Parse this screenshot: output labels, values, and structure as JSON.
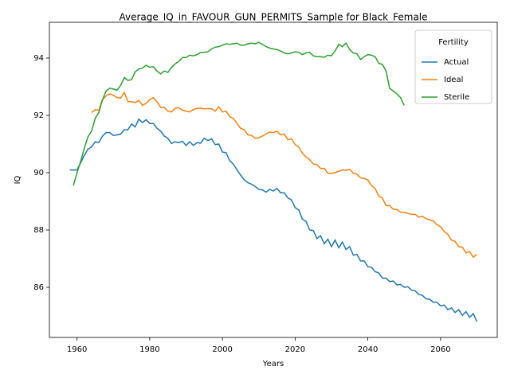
{
  "chart_data": {
    "type": "line",
    "title": "Average_IQ_in_FAVOUR_GUN_PERMITS_Sample for Black_Female",
    "xlabel": "Years",
    "ylabel": "IQ",
    "legend_title": "Fertility",
    "legend": "upper right",
    "grid": false,
    "xlim": [
      1952.4,
      2075.6
    ],
    "ylim": [
      84.25,
      95.25
    ],
    "xticks": [
      1960,
      1980,
      2000,
      2020,
      2040,
      2060
    ],
    "yticks": [
      86,
      88,
      90,
      92,
      94
    ],
    "x": [
      1958,
      1959,
      1960,
      1961,
      1962,
      1963,
      1964,
      1965,
      1966,
      1967,
      1968,
      1969,
      1970,
      1971,
      1972,
      1973,
      1974,
      1975,
      1976,
      1977,
      1978,
      1979,
      1980,
      1981,
      1982,
      1983,
      1984,
      1985,
      1986,
      1987,
      1988,
      1989,
      1990,
      1991,
      1992,
      1993,
      1994,
      1995,
      1996,
      1997,
      1998,
      1999,
      2000,
      2001,
      2002,
      2003,
      2004,
      2005,
      2006,
      2007,
      2008,
      2009,
      2010,
      2011,
      2012,
      2013,
      2014,
      2015,
      2016,
      2017,
      2018,
      2019,
      2020,
      2021,
      2022,
      2023,
      2024,
      2025,
      2026,
      2027,
      2028,
      2029,
      2030,
      2031,
      2032,
      2033,
      2034,
      2035,
      2036,
      2037,
      2038,
      2039,
      2040,
      2041,
      2042,
      2043,
      2044,
      2045,
      2046,
      2047,
      2048,
      2049,
      2050,
      2051,
      2052,
      2053,
      2054,
      2055,
      2056,
      2057,
      2058,
      2059,
      2060,
      2061,
      2062,
      2063,
      2064,
      2065,
      2066,
      2067,
      2068,
      2069,
      2070
    ],
    "series": [
      {
        "name": "Actual",
        "color": "#1f77b4",
        "values": [
          90.1,
          90.09,
          90.1,
          90.35,
          90.6,
          90.82,
          90.9,
          91.08,
          91.05,
          91.28,
          91.4,
          91.4,
          91.3,
          91.32,
          91.35,
          91.5,
          91.5,
          91.7,
          91.6,
          91.87,
          91.75,
          91.85,
          91.72,
          91.72,
          91.55,
          91.45,
          91.28,
          91.2,
          91.02,
          91.08,
          91.05,
          91.1,
          90.95,
          91.08,
          90.95,
          91.05,
          91.03,
          91.2,
          91.12,
          91.18,
          90.98,
          91.0,
          90.72,
          90.7,
          90.42,
          90.3,
          90.1,
          89.92,
          89.75,
          89.65,
          89.6,
          89.52,
          89.42,
          89.4,
          89.32,
          89.42,
          89.36,
          89.45,
          89.3,
          89.3,
          89.12,
          89.05,
          88.78,
          88.7,
          88.38,
          88.3,
          88.0,
          87.98,
          87.7,
          87.8,
          87.52,
          87.68,
          87.42,
          87.65,
          87.38,
          87.58,
          87.32,
          87.42,
          87.12,
          87.15,
          86.92,
          86.92,
          86.72,
          86.7,
          86.55,
          86.5,
          86.32,
          86.32,
          86.2,
          86.22,
          86.08,
          86.1,
          86.0,
          86.02,
          85.9,
          85.88,
          85.75,
          85.72,
          85.6,
          85.58,
          85.48,
          85.48,
          85.35,
          85.38,
          85.22,
          85.28,
          85.12,
          85.22,
          85.02,
          85.15,
          84.95,
          85.08,
          84.8
        ]
      },
      {
        "name": "Ideal",
        "color": "#ff7f0e",
        "values": [
          null,
          null,
          null,
          null,
          null,
          null,
          92.1,
          92.2,
          92.18,
          92.55,
          92.68,
          92.75,
          92.7,
          92.62,
          92.6,
          92.8,
          92.48,
          92.48,
          92.45,
          92.52,
          92.35,
          92.42,
          92.55,
          92.62,
          92.48,
          92.28,
          92.28,
          92.15,
          92.12,
          92.25,
          92.27,
          92.18,
          92.15,
          92.12,
          92.2,
          92.25,
          92.25,
          92.23,
          92.24,
          92.23,
          92.15,
          92.3,
          92.12,
          92.15,
          91.95,
          91.9,
          91.72,
          91.55,
          91.5,
          91.32,
          91.3,
          91.2,
          91.22,
          91.28,
          91.35,
          91.42,
          91.4,
          91.45,
          91.32,
          91.35,
          91.15,
          91.18,
          90.98,
          90.9,
          90.68,
          90.55,
          90.45,
          90.3,
          90.28,
          90.15,
          90.15,
          89.98,
          89.98,
          90.0,
          90.05,
          90.1,
          90.08,
          90.12,
          89.98,
          89.95,
          89.82,
          89.8,
          89.75,
          89.55,
          89.45,
          89.18,
          89.12,
          88.85,
          88.85,
          88.72,
          88.72,
          88.62,
          88.62,
          88.58,
          88.55,
          88.55,
          88.45,
          88.48,
          88.4,
          88.35,
          88.32,
          88.18,
          88.12,
          87.95,
          87.85,
          87.65,
          87.6,
          87.42,
          87.4,
          87.2,
          87.25,
          87.05,
          87.15
        ]
      },
      {
        "name": "Sterile",
        "color": "#2ca02c",
        "values": [
          null,
          89.55,
          90.0,
          90.4,
          90.85,
          91.25,
          91.45,
          91.9,
          92.1,
          92.55,
          92.85,
          92.95,
          92.92,
          92.88,
          93.05,
          93.32,
          93.22,
          93.25,
          93.52,
          93.62,
          93.65,
          93.75,
          93.68,
          93.7,
          93.55,
          93.45,
          93.55,
          93.5,
          93.68,
          93.8,
          93.88,
          94.02,
          94.02,
          94.1,
          94.08,
          94.12,
          94.2,
          94.2,
          94.22,
          94.32,
          94.38,
          94.4,
          94.45,
          94.5,
          94.48,
          94.5,
          94.52,
          94.45,
          94.45,
          94.5,
          94.52,
          94.5,
          94.55,
          94.48,
          94.4,
          94.35,
          94.32,
          94.3,
          94.25,
          94.18,
          94.15,
          94.18,
          94.22,
          94.2,
          94.12,
          94.18,
          94.2,
          94.08,
          94.05,
          94.05,
          94.03,
          94.1,
          94.08,
          94.25,
          94.48,
          94.4,
          94.52,
          94.3,
          94.18,
          94.15,
          93.95,
          94.05,
          94.12,
          94.1,
          94.05,
          93.82,
          93.78,
          93.55,
          92.95,
          92.85,
          92.75,
          92.62,
          92.35,
          null,
          null,
          null,
          null,
          null,
          null,
          null,
          null,
          null,
          null,
          null,
          null,
          null,
          null,
          null,
          null,
          null,
          null,
          null,
          null
        ]
      }
    ]
  }
}
